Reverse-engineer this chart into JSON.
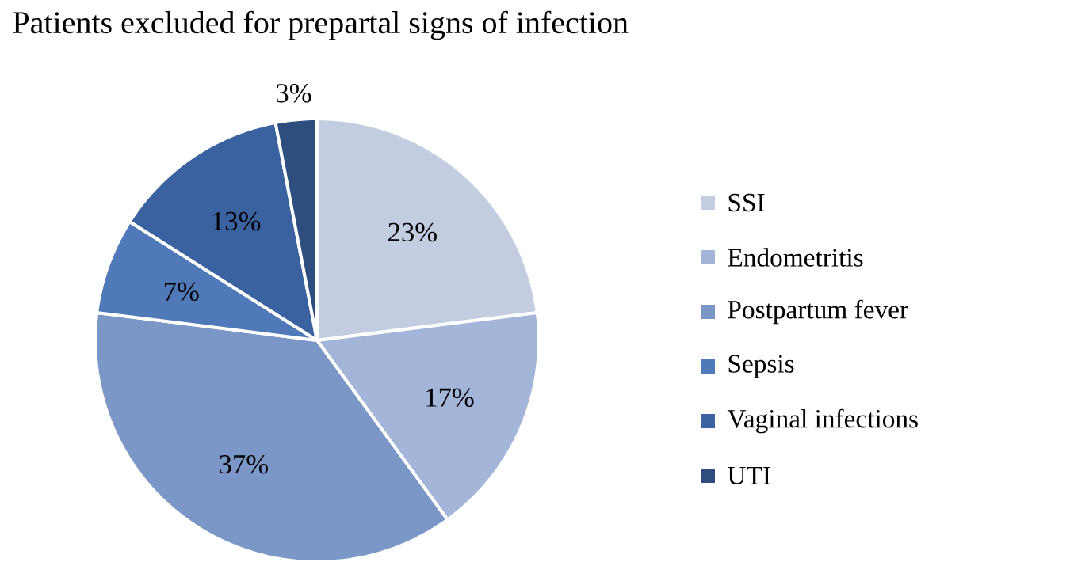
{
  "chart_data": {
    "type": "pie",
    "title": "Patients excluded for prepartal signs of infection",
    "categories": [
      "SSI",
      "Endometritis",
      "Postpartum fever",
      "Sepsis",
      "Vaginal infections",
      "UTI"
    ],
    "values": [
      23,
      17,
      37,
      7,
      13,
      3
    ],
    "value_labels": [
      "23%",
      "17%",
      "37%",
      "7%",
      "13%",
      "3%"
    ],
    "colors": [
      "#c3cde2",
      "#a3b5d8",
      "#7b97c8",
      "#5079ba",
      "#3b62a0",
      "#2e4e80"
    ],
    "legend": "right"
  }
}
